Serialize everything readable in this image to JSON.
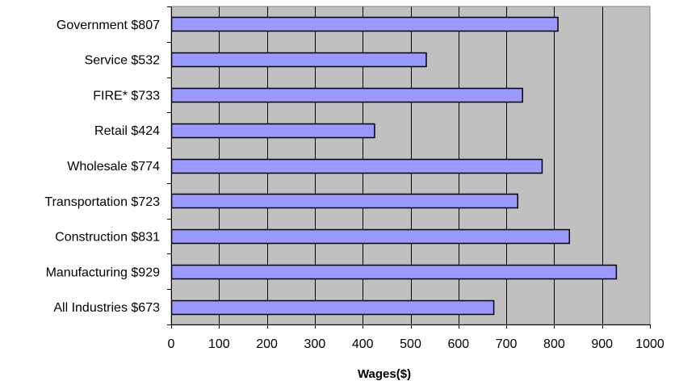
{
  "chart_data": {
    "type": "bar",
    "orientation": "horizontal",
    "categories": [
      "Government $807",
      "Service $532",
      "FIRE* $733",
      "Retail $424",
      "Wholesale $774",
      "Transportation $723",
      "Construction $831",
      "Manufacturing $929",
      "All Industries $673"
    ],
    "values": [
      807,
      532,
      733,
      424,
      774,
      723,
      831,
      929,
      673
    ],
    "title": "",
    "xlabel": "Wages($)",
    "ylabel": "",
    "xlim": [
      0,
      1000
    ],
    "x_ticks": [
      0,
      100,
      200,
      300,
      400,
      500,
      600,
      700,
      800,
      900,
      1000
    ],
    "grid": true,
    "legend": "none",
    "colors": {
      "bar_fill": "#9999ff",
      "bar_stroke": "#000000",
      "plot_background": "#c0c0c0",
      "gridline": "#000000"
    }
  }
}
